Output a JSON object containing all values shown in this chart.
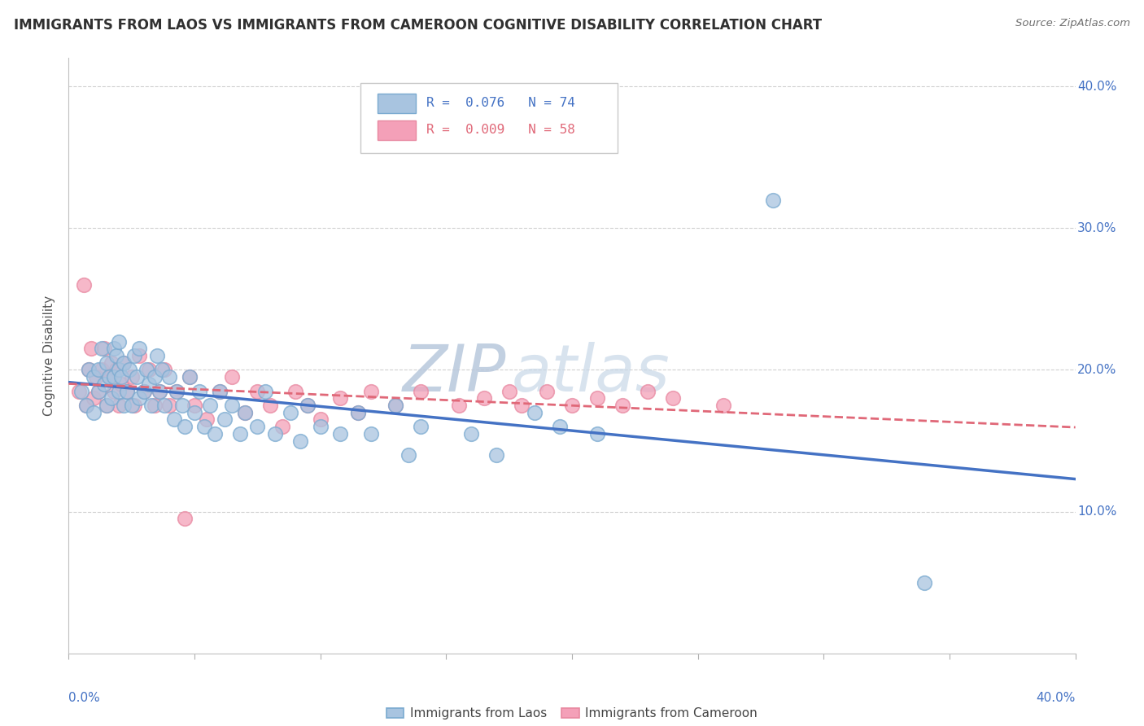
{
  "title": "IMMIGRANTS FROM LAOS VS IMMIGRANTS FROM CAMEROON COGNITIVE DISABILITY CORRELATION CHART",
  "source_text": "Source: ZipAtlas.com",
  "ylabel": "Cognitive Disability",
  "xlim": [
    0.0,
    0.4
  ],
  "ylim": [
    0.0,
    0.42
  ],
  "legend_laos_R": "0.076",
  "legend_laos_N": "74",
  "legend_cameroon_R": "0.009",
  "legend_cameroon_N": "58",
  "color_laos_fill": "#a8c4e0",
  "color_cameroon_fill": "#f4a0b8",
  "color_laos_edge": "#7aaad0",
  "color_cameroon_edge": "#e888a0",
  "color_laos_line": "#4472c4",
  "color_cameroon_line": "#e06878",
  "color_tick_label": "#4472c4",
  "watermark_color": "#cdd9e8",
  "background_color": "#ffffff",
  "grid_color": "#d0d0d0",
  "laos_x": [
    0.005,
    0.007,
    0.008,
    0.01,
    0.01,
    0.012,
    0.012,
    0.013,
    0.014,
    0.015,
    0.015,
    0.016,
    0.017,
    0.018,
    0.018,
    0.019,
    0.02,
    0.02,
    0.02,
    0.021,
    0.022,
    0.022,
    0.023,
    0.024,
    0.025,
    0.026,
    0.027,
    0.028,
    0.028,
    0.03,
    0.031,
    0.032,
    0.033,
    0.034,
    0.035,
    0.036,
    0.037,
    0.038,
    0.04,
    0.042,
    0.043,
    0.045,
    0.046,
    0.048,
    0.05,
    0.052,
    0.054,
    0.056,
    0.058,
    0.06,
    0.062,
    0.065,
    0.068,
    0.07,
    0.075,
    0.078,
    0.082,
    0.088,
    0.092,
    0.095,
    0.1,
    0.108,
    0.115,
    0.12,
    0.13,
    0.135,
    0.14,
    0.16,
    0.17,
    0.185,
    0.195,
    0.21,
    0.28,
    0.34
  ],
  "laos_y": [
    0.185,
    0.175,
    0.2,
    0.17,
    0.195,
    0.185,
    0.2,
    0.215,
    0.19,
    0.175,
    0.205,
    0.195,
    0.18,
    0.215,
    0.195,
    0.21,
    0.185,
    0.2,
    0.22,
    0.195,
    0.175,
    0.205,
    0.185,
    0.2,
    0.175,
    0.21,
    0.195,
    0.18,
    0.215,
    0.185,
    0.2,
    0.19,
    0.175,
    0.195,
    0.21,
    0.185,
    0.2,
    0.175,
    0.195,
    0.165,
    0.185,
    0.175,
    0.16,
    0.195,
    0.17,
    0.185,
    0.16,
    0.175,
    0.155,
    0.185,
    0.165,
    0.175,
    0.155,
    0.17,
    0.16,
    0.185,
    0.155,
    0.17,
    0.15,
    0.175,
    0.16,
    0.155,
    0.17,
    0.155,
    0.175,
    0.14,
    0.16,
    0.155,
    0.14,
    0.17,
    0.16,
    0.155,
    0.32,
    0.05
  ],
  "cameroon_x": [
    0.004,
    0.006,
    0.007,
    0.008,
    0.009,
    0.01,
    0.011,
    0.012,
    0.013,
    0.014,
    0.015,
    0.016,
    0.017,
    0.018,
    0.019,
    0.02,
    0.021,
    0.022,
    0.023,
    0.025,
    0.026,
    0.028,
    0.03,
    0.032,
    0.034,
    0.036,
    0.038,
    0.04,
    0.043,
    0.046,
    0.048,
    0.05,
    0.055,
    0.06,
    0.065,
    0.07,
    0.075,
    0.08,
    0.085,
    0.09,
    0.095,
    0.1,
    0.108,
    0.115,
    0.12,
    0.13,
    0.14,
    0.155,
    0.165,
    0.175,
    0.18,
    0.19,
    0.2,
    0.21,
    0.22,
    0.23,
    0.24,
    0.26
  ],
  "cameroon_y": [
    0.185,
    0.26,
    0.175,
    0.2,
    0.215,
    0.18,
    0.195,
    0.185,
    0.2,
    0.215,
    0.175,
    0.195,
    0.205,
    0.185,
    0.2,
    0.175,
    0.19,
    0.205,
    0.185,
    0.195,
    0.175,
    0.21,
    0.185,
    0.2,
    0.175,
    0.185,
    0.2,
    0.175,
    0.185,
    0.095,
    0.195,
    0.175,
    0.165,
    0.185,
    0.195,
    0.17,
    0.185,
    0.175,
    0.16,
    0.185,
    0.175,
    0.165,
    0.18,
    0.17,
    0.185,
    0.175,
    0.185,
    0.175,
    0.18,
    0.185,
    0.175,
    0.185,
    0.175,
    0.18,
    0.175,
    0.185,
    0.18,
    0.175
  ]
}
